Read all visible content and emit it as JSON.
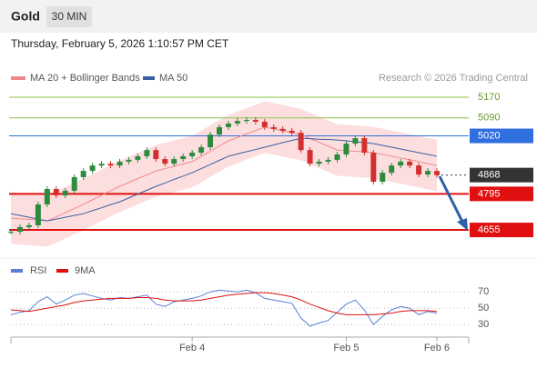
{
  "chart_data": {
    "type": "candlestick",
    "title": "Gold",
    "timeframe": "30 MIN",
    "subtitle": "Thursday, February 5, 2026 1:10:57 PM CET",
    "source": "Research © 2026 Trading Central",
    "categories": [
      null,
      null,
      null,
      null,
      null,
      null,
      null,
      null,
      null,
      null,
      null,
      null,
      null,
      null,
      null,
      null,
      null,
      null,
      null,
      null,
      "Feb 4",
      null,
      null,
      null,
      null,
      null,
      null,
      null,
      null,
      null,
      null,
      null,
      null,
      null,
      null,
      null,
      null,
      "Feb 5",
      null,
      null,
      null,
      null,
      null,
      null,
      null,
      null,
      null,
      "Feb 6"
    ],
    "close": [
      4648,
      4666,
      4673,
      4754,
      4814,
      4789,
      4807,
      4860,
      4884,
      4905,
      4912,
      4905,
      4920,
      4927,
      4941,
      4965,
      4930,
      4912,
      4930,
      4941,
      4955,
      4976,
      5025,
      5054,
      5068,
      5078,
      5082,
      5075,
      5054,
      5047,
      5040,
      5032,
      4965,
      4912,
      4920,
      4927,
      4948,
      4990,
      5011,
      4955,
      4842,
      4877,
      4905,
      4920,
      4905,
      4870,
      4884,
      4868
    ],
    "up_color": "#2e8b3e",
    "down_color": "#d32f2f",
    "ma20": {
      "name": "MA 20 + Bollinger Bands",
      "color": "#f08a8a",
      "band_color": "#fbd3d3",
      "values": [
        4701,
        4698,
        4696,
        4693,
        4690,
        4706,
        4722,
        4738,
        4754,
        4772,
        4789,
        4807,
        4824,
        4839,
        4854,
        4869,
        4884,
        4893,
        4902,
        4911,
        4920,
        4940,
        4961,
        4981,
        5001,
        5014,
        5028,
        5041,
        5054,
        5047,
        5040,
        5032,
        5025,
        5010,
        4995,
        4980,
        4965,
        4963,
        4960,
        4958,
        4955,
        4948,
        4941,
        4934,
        4927,
        4920,
        4912,
        4905
      ],
      "upper": [
        4801,
        4798,
        4796,
        4793,
        4790,
        4806,
        4822,
        4838,
        4854,
        4872,
        4889,
        4907,
        4924,
        4939,
        4954,
        4969,
        4984,
        4993,
        5002,
        5011,
        5020,
        5040,
        5061,
        5081,
        5101,
        5114,
        5128,
        5141,
        5154,
        5147,
        5140,
        5132,
        5125,
        5110,
        5095,
        5080,
        5065,
        5063,
        5060,
        5058,
        5055,
        5048,
        5041,
        5034,
        5027,
        5020,
        5012,
        5005
      ],
      "lower": [
        4601,
        4598,
        4596,
        4593,
        4590,
        4606,
        4622,
        4638,
        4654,
        4672,
        4689,
        4707,
        4724,
        4739,
        4754,
        4769,
        4784,
        4793,
        4802,
        4811,
        4820,
        4840,
        4861,
        4881,
        4901,
        4914,
        4928,
        4941,
        4954,
        4947,
        4940,
        4932,
        4925,
        4910,
        4895,
        4880,
        4865,
        4863,
        4860,
        4858,
        4855,
        4848,
        4841,
        4834,
        4827,
        4820,
        4812,
        4805
      ]
    },
    "ma50": {
      "name": "MA 50",
      "color": "#3a5fa0",
      "values": [
        4718,
        4711,
        4704,
        4697,
        4690,
        4697,
        4704,
        4711,
        4718,
        4730,
        4741,
        4753,
        4764,
        4779,
        4794,
        4809,
        4824,
        4837,
        4851,
        4864,
        4877,
        4893,
        4909,
        4925,
        4941,
        4950,
        4959,
        4967,
        4976,
        4985,
        4994,
        5002,
        5011,
        5009,
        5007,
        5006,
        5004,
        5001,
        4997,
        4994,
        4990,
        4983,
        4976,
        4969,
        4962,
        4955,
        4948,
        4941
      ]
    },
    "levels": [
      {
        "value": 5170,
        "color": "#8bc34a"
      },
      {
        "value": 5090,
        "color": "#8bc34a"
      },
      {
        "value": 5020,
        "color": "#2f6fe0"
      },
      {
        "value": 4868,
        "color": "#333333"
      },
      {
        "value": 4795,
        "color": "#e01010"
      },
      {
        "value": 4655,
        "color": "#e01010"
      }
    ],
    "ylim": [
      4560,
      5237
    ],
    "rsi": {
      "series": [
        {
          "name": "RSI",
          "color": "#5b7fd6",
          "values": [
            42,
            45,
            47,
            58,
            64,
            55,
            60,
            66,
            68,
            65,
            62,
            60,
            63,
            62,
            64,
            66,
            55,
            52,
            58,
            60,
            62,
            65,
            70,
            72,
            71,
            70,
            72,
            69,
            62,
            60,
            58,
            56,
            38,
            28,
            32,
            35,
            45,
            55,
            60,
            48,
            30,
            40,
            48,
            52,
            50,
            42,
            46,
            44
          ]
        },
        {
          "name": "9MA",
          "color": "#e01010",
          "values": [
            48,
            47,
            46,
            48,
            50,
            52,
            54,
            57,
            59,
            60,
            61,
            62,
            62,
            62,
            63,
            63,
            62,
            60,
            59,
            59,
            59,
            60,
            62,
            64,
            66,
            67,
            68,
            69,
            69,
            68,
            66,
            64,
            60,
            55,
            51,
            47,
            44,
            42,
            42,
            42,
            42,
            43,
            44,
            46,
            47,
            47,
            47,
            46
          ]
        }
      ],
      "ylim": [
        18,
        88
      ],
      "yticks": [
        70,
        50,
        30
      ]
    }
  }
}
